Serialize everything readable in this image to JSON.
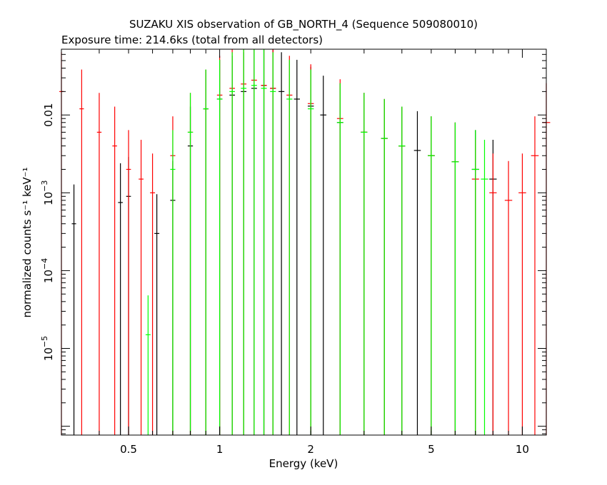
{
  "chart_data": {
    "type": "scatter",
    "title": "SUZAKU XIS observation of GB_NORTH_4 (Sequence 509080010)",
    "subtitle": "Exposure time: 214.6ks (total from all detectors)",
    "xlabel": "Energy (keV)",
    "ylabel": "normalized counts s⁻¹ keV⁻¹",
    "x_scale": "log",
    "y_scale": "log",
    "xlim": [
      0.3,
      12
    ],
    "ylim": [
      7.7e-07,
      0.07
    ],
    "x_ticks": [
      {
        "value": 0.5,
        "label": "0.5"
      },
      {
        "value": 1,
        "label": "1"
      },
      {
        "value": 2,
        "label": "2"
      },
      {
        "value": 5,
        "label": "5"
      },
      {
        "value": 10,
        "label": "10"
      }
    ],
    "y_ticks": [
      {
        "value": 1e-05,
        "base": "10",
        "exp": "−5"
      },
      {
        "value": 0.0001,
        "base": "10",
        "exp": "−4"
      },
      {
        "value": 0.001,
        "base": "10",
        "exp": "−3"
      },
      {
        "value": 0.01,
        "label": "0.01"
      }
    ],
    "grid": false,
    "series": [
      {
        "color": "#000000",
        "x": [
          0.33,
          0.47,
          0.5,
          0.62,
          0.7,
          0.8,
          0.9,
          1.0,
          1.1,
          1.2,
          1.3,
          1.4,
          1.5,
          1.6,
          1.8,
          2.0,
          2.2,
          2.5,
          3.0,
          3.5,
          4.0,
          4.5,
          5.0,
          6.0,
          7.0,
          8.0
        ],
        "y": [
          0.0004,
          0.00075,
          0.0009,
          0.0003,
          0.0008,
          0.004,
          0.012,
          0.016,
          0.018,
          0.02,
          0.022,
          0.024,
          0.022,
          0.02,
          0.016,
          0.013,
          0.01,
          0.008,
          0.006,
          0.005,
          0.004,
          0.0035,
          0.003,
          0.0025,
          0.002,
          0.0015
        ]
      },
      {
        "color": "#ff0000",
        "x": [
          0.3,
          0.35,
          0.4,
          0.45,
          0.5,
          0.55,
          0.6,
          0.7,
          0.8,
          0.9,
          1.0,
          1.1,
          1.2,
          1.3,
          1.4,
          1.5,
          1.7,
          2.0,
          2.5,
          3.0,
          3.5,
          4.0,
          5.0,
          6.0,
          7.0,
          8.0,
          9.0,
          10.0,
          11.0,
          12.0
        ],
        "y": [
          0.02,
          0.012,
          0.006,
          0.004,
          0.002,
          0.0015,
          0.001,
          0.003,
          0.006,
          0.012,
          0.018,
          0.022,
          0.025,
          0.028,
          0.024,
          0.022,
          0.018,
          0.014,
          0.009,
          0.006,
          0.005,
          0.004,
          0.003,
          0.0025,
          0.0015,
          0.001,
          0.0008,
          0.001,
          0.003,
          0.008
        ]
      },
      {
        "color": "#00ff00",
        "x": [
          0.58,
          0.7,
          0.8,
          0.9,
          1.0,
          1.1,
          1.2,
          1.3,
          1.4,
          1.5,
          1.7,
          2.0,
          2.5,
          3.0,
          3.5,
          4.0,
          5.0,
          6.0,
          7.0,
          7.5
        ],
        "y": [
          1.5e-05,
          0.002,
          0.006,
          0.012,
          0.016,
          0.02,
          0.022,
          0.024,
          0.022,
          0.02,
          0.016,
          0.012,
          0.008,
          0.006,
          0.005,
          0.004,
          0.003,
          0.0025,
          0.002,
          0.0015
        ]
      }
    ]
  }
}
